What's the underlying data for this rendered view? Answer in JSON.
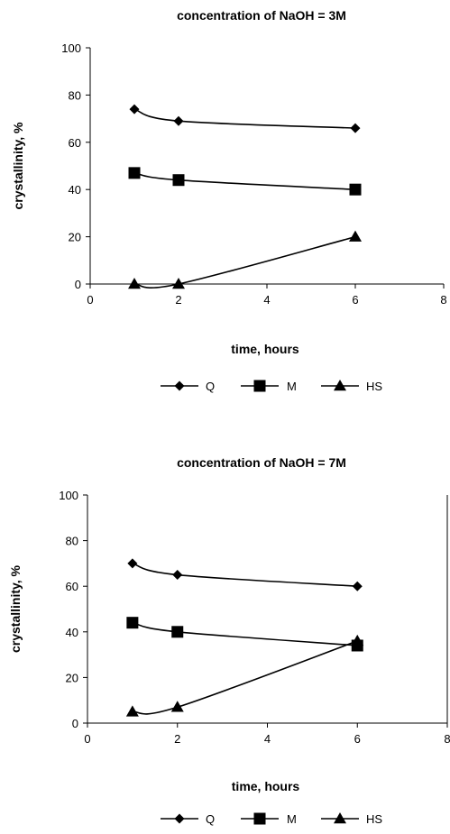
{
  "chart_data": [
    {
      "type": "line",
      "title": "concentration of NaOH = 3M",
      "xlabel": "time, hours",
      "ylabel": "crystallinity, %",
      "xlim": [
        0,
        8
      ],
      "ylim": [
        0,
        100
      ],
      "xticks": [
        "0",
        "2",
        "4",
        "6",
        "8"
      ],
      "yticks": [
        "0",
        "20",
        "40",
        "60",
        "80",
        "100"
      ],
      "grid": false,
      "legend_position": "bottom",
      "x": [
        1,
        2,
        6
      ],
      "series": [
        {
          "name": "Q",
          "marker": "diamond",
          "values": [
            74,
            69,
            66
          ]
        },
        {
          "name": "M",
          "marker": "square",
          "values": [
            47,
            44,
            40
          ]
        },
        {
          "name": "HS",
          "marker": "triangle",
          "values": [
            0,
            0,
            20
          ]
        }
      ]
    },
    {
      "type": "line",
      "title": "concentration of NaOH = 7M",
      "xlabel": "time, hours",
      "ylabel": "crystallinity, %",
      "xlim": [
        0,
        8
      ],
      "ylim": [
        0,
        100
      ],
      "xticks": [
        "0",
        "2",
        "4",
        "6",
        "8"
      ],
      "yticks": [
        "0",
        "20",
        "40",
        "60",
        "80",
        "100"
      ],
      "grid": false,
      "legend_position": "bottom",
      "x": [
        1,
        2,
        6
      ],
      "series": [
        {
          "name": "Q",
          "marker": "diamond",
          "values": [
            70,
            65,
            60
          ]
        },
        {
          "name": "M",
          "marker": "square",
          "values": [
            44,
            40,
            34
          ]
        },
        {
          "name": "HS",
          "marker": "triangle",
          "values": [
            5,
            7,
            36
          ]
        }
      ]
    }
  ]
}
